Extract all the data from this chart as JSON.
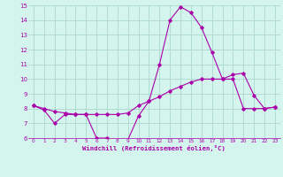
{
  "title": "",
  "xlabel": "Windchill (Refroidissement éolien,°C)",
  "bg_color": "#d4f5ee",
  "grid_color": "#aad8cc",
  "line_color": "#aa00aa",
  "xlim": [
    -0.5,
    23.5
  ],
  "ylim": [
    6,
    15
  ],
  "yticks": [
    6,
    7,
    8,
    9,
    10,
    11,
    12,
    13,
    14,
    15
  ],
  "xticks": [
    0,
    1,
    2,
    3,
    4,
    5,
    6,
    7,
    8,
    9,
    10,
    11,
    12,
    13,
    14,
    15,
    16,
    17,
    18,
    19,
    20,
    21,
    22,
    23
  ],
  "line1_x": [
    0,
    1,
    2,
    3,
    4,
    5,
    6,
    7,
    8,
    9,
    10,
    11,
    12,
    13,
    14,
    15,
    16,
    17,
    18,
    19,
    20,
    21,
    22,
    23
  ],
  "line1_y": [
    8.2,
    7.9,
    7.0,
    7.6,
    7.6,
    7.6,
    6.0,
    6.0,
    5.8,
    5.9,
    7.5,
    8.5,
    11.0,
    14.0,
    14.9,
    14.5,
    13.5,
    11.8,
    10.0,
    10.3,
    10.4,
    8.9,
    8.0,
    8.1
  ],
  "line2_x": [
    0,
    1,
    2,
    3,
    4,
    5,
    6,
    7,
    8,
    9,
    10,
    11,
    12,
    13,
    14,
    15,
    16,
    17,
    18,
    19,
    20,
    21,
    22,
    23
  ],
  "line2_y": [
    8.2,
    8.0,
    7.8,
    7.7,
    7.6,
    7.6,
    7.6,
    7.6,
    7.6,
    7.7,
    8.2,
    8.5,
    8.8,
    9.2,
    9.5,
    9.8,
    10.0,
    10.0,
    10.0,
    10.0,
    8.0,
    8.0,
    8.0,
    8.1
  ]
}
